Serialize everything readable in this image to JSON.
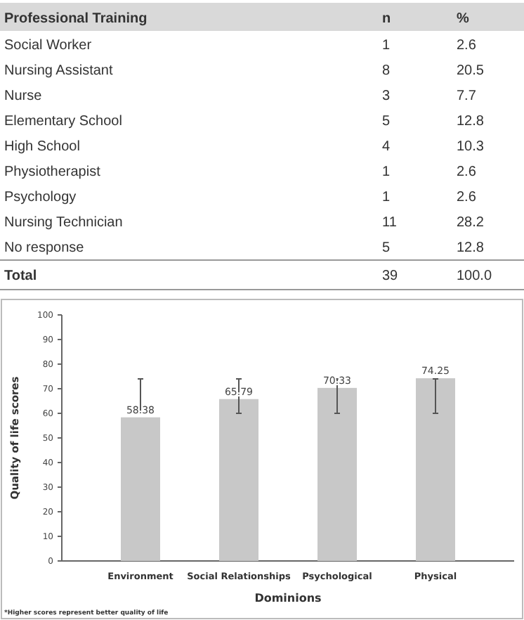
{
  "chart_data": [
    {
      "type": "other",
      "title": "Professional Training",
      "categories": [
        "Social Worker",
        "Nursing Assistant",
        "Nurse",
        "Elementary School",
        "High School",
        "Physiotherapist",
        "Psychology",
        "Nursing Technician",
        "No response"
      ],
      "series": [
        {
          "name": "n",
          "values": [
            1,
            8,
            3,
            5,
            4,
            1,
            1,
            11,
            5
          ]
        },
        {
          "name": "%",
          "values": [
            2.6,
            20.5,
            7.7,
            12.8,
            10.3,
            2.6,
            2.6,
            28.2,
            12.8
          ]
        }
      ],
      "data_labels": true,
      "annotations": [
        "Total",
        "39",
        "100.0"
      ]
    },
    {
      "type": "bar",
      "xlabel": "Dominions",
      "ylabel": "Quality of life scores",
      "categories": [
        "Environment",
        "Social Relationships",
        "Psychological",
        "Physical"
      ],
      "values": [
        58.38,
        65.79,
        70.33,
        74.25
      ],
      "errors": [
        [
          60,
          74
        ],
        [
          60,
          74
        ],
        [
          60,
          74
        ],
        [
          60,
          74
        ]
      ],
      "color": "#c8c8c8",
      "data_labels": true,
      "ylim": [
        0,
        100
      ],
      "yticks": [
        0,
        10,
        20,
        30,
        40,
        50,
        60,
        70,
        80,
        90,
        100
      ],
      "grid": false,
      "annotations": [
        "*Higher scores represent better quality of life"
      ]
    }
  ]
}
